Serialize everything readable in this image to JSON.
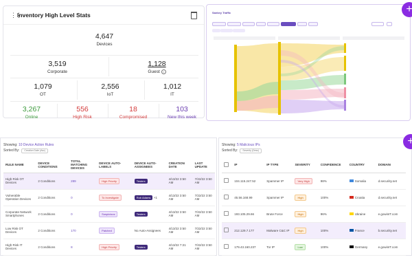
{
  "inventory": {
    "title": "Inventory High Level Stats",
    "total": {
      "value": "4,647",
      "label": "Devices"
    },
    "corporate": {
      "value": "3,519",
      "label": "Corporate"
    },
    "guest": {
      "value": "1,128",
      "label": "Guest",
      "icon": "info-icon"
    },
    "ot": {
      "value": "1,079",
      "label": "OT"
    },
    "iot": {
      "value": "2,556",
      "label": "IoT"
    },
    "it": {
      "value": "1,012",
      "label": "IT"
    },
    "online": {
      "value": "3,267",
      "label": "Online",
      "color": "#3c9a3c"
    },
    "high_risk": {
      "value": "556",
      "label": "High Risk",
      "color": "#d33a3a"
    },
    "compromised": {
      "value": "18",
      "label": "Compromised",
      "color": "#d33a3a"
    },
    "new_week": {
      "value": "103",
      "label": "New this week",
      "color": "#6a3db0"
    }
  },
  "sankey": {
    "title": "Sankey Traffic",
    "colors": {
      "gold": "#f4d35e",
      "green": "#9bd89b",
      "pink": "#f4b6c2",
      "purple": "#c7a7ee",
      "accent": "#8a2be2"
    }
  },
  "device_rules": {
    "showing_prefix": "Showing:",
    "showing_count": "10 Device Action Rules",
    "sorted_by": "Sorted By:",
    "sort_chip": "Creation Date (Asc)",
    "headers": [
      "Rule Name",
      "Device Conditions",
      "Total Matching Devices",
      "Device Auto-Labels",
      "Device Auto-Assignees",
      "Creation Date",
      "Last Update"
    ],
    "rows": [
      {
        "name": "High Risk OT Devices",
        "conditions": "2 Conditions",
        "matching": "289",
        "label": "High Priority",
        "label_style": "red",
        "assignee": "Testers",
        "assignee_extra": "",
        "created": "4/13/22 3:50 AM",
        "updated": "7/22/22 3:50 AM",
        "highlight": true
      },
      {
        "name": "Vulnerable Operation Devices",
        "conditions": "2 Conditions",
        "matching": "0",
        "label": "To Investigate",
        "label_style": "red",
        "assignee": "Rob Adams",
        "assignee_extra": "+1",
        "created": "4/13/22 3:50 AM",
        "updated": "7/22/22 3:50 AM",
        "highlight": false
      },
      {
        "name": "Corporate Network Smartphones",
        "conditions": "2 Conditions",
        "matching": "0",
        "label": "Suspicious",
        "label_style": "purple",
        "assignee": "Testers",
        "assignee_extra": "",
        "created": "4/13/22 3:50 AM",
        "updated": "7/22/22 3:50 AM",
        "highlight": false
      },
      {
        "name": "Low Risk OT Devices",
        "conditions": "2 Conditions",
        "matching": "170",
        "label": "Patched",
        "label_style": "purple",
        "assignee": "No Auto-Assignees",
        "assignee_extra": "",
        "created": "4/13/22 3:50 AM",
        "updated": "7/22/22 3:50 AM",
        "highlight": false
      },
      {
        "name": "High Risk IT Devices",
        "conditions": "2 Conditions",
        "matching": "8",
        "label": "High Priority",
        "label_style": "red",
        "assignee": "Testers",
        "assignee_extra": "",
        "created": "4/13/22 7:21 AM",
        "updated": "7/22/22 3:50 AM",
        "highlight": false
      }
    ]
  },
  "malicious_ips": {
    "showing_prefix": "Showing:",
    "showing_count": "5 Malicious IPs",
    "sorted_by": "Sorted By:",
    "sort_chip": "Severity (Desc)",
    "headers": [
      "IP",
      "IP Type",
      "Severity",
      "Confidence",
      "Country",
      "Domain"
    ],
    "rows": [
      {
        "ip": "104.115.247.52",
        "type": "Spammer IP",
        "severity": "Very High",
        "sev_style": "red",
        "confidence": "98%",
        "country": "Somalia",
        "flag": "#4189dd",
        "domain": "d.securiity.net",
        "highlight": false
      },
      {
        "ip": "45.56.168.99",
        "type": "Spammer IP",
        "severity": "High",
        "sev_style": "orange",
        "confidence": "100%",
        "country": "Croatia",
        "flag": "#d52b1e",
        "domain": "d.securiity.net",
        "highlight": false
      },
      {
        "ip": "193.105.29.66",
        "type": "Brute Force",
        "severity": "High",
        "sev_style": "orange",
        "confidence": "96%",
        "country": "Ukraine",
        "flag": "#ffd500",
        "domain": "e.gowinIT.com",
        "highlight": false
      },
      {
        "ip": "212.129.7.177",
        "type": "Malware C&C IP",
        "severity": "High",
        "sev_style": "orange",
        "confidence": "100%",
        "country": "France",
        "flag": "#0055a4",
        "domain": "b.securiity.net",
        "highlight": true
      },
      {
        "ip": "179.43.160.237",
        "type": "Tor IP",
        "severity": "Low",
        "sev_style": "green",
        "confidence": "100%",
        "country": "Germany",
        "flag": "#000000",
        "domain": "e.gowinIT.com",
        "highlight": false
      }
    ]
  }
}
